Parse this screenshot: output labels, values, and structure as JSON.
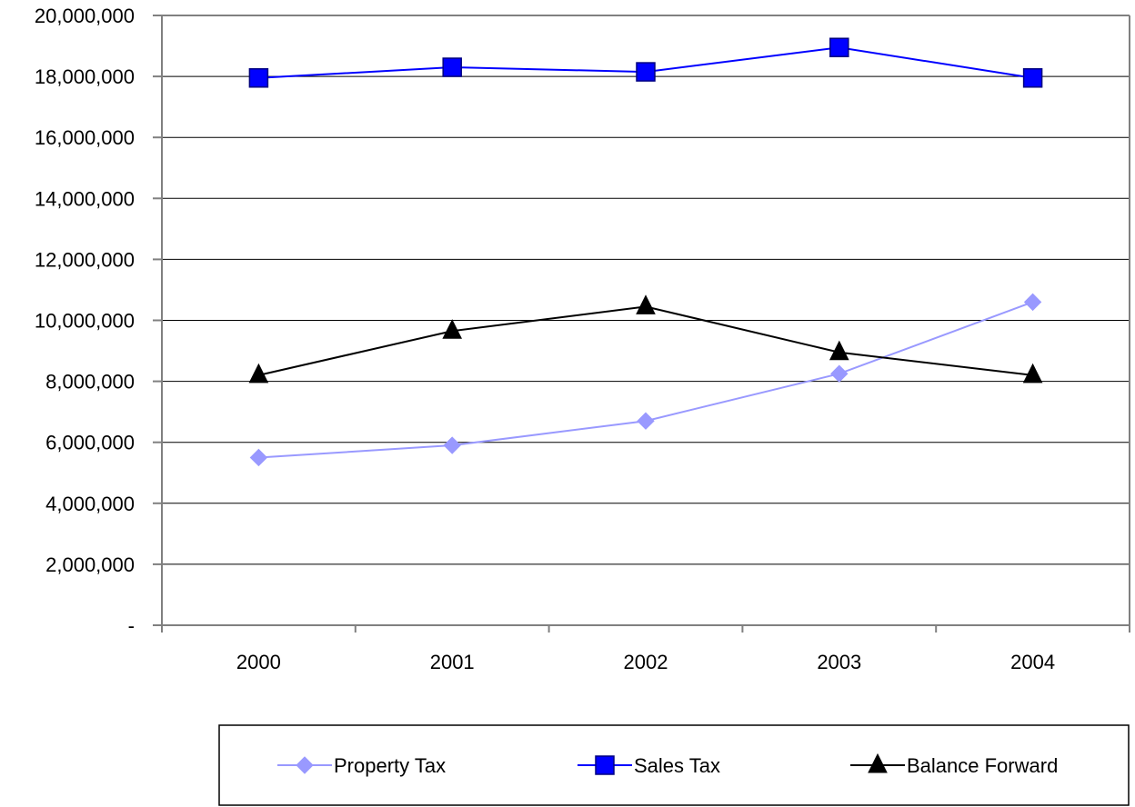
{
  "chart_data": {
    "type": "line",
    "title": "",
    "xlabel": "",
    "ylabel": "",
    "categories": [
      "2000",
      "2001",
      "2002",
      "2003",
      "2004"
    ],
    "ylim": [
      0,
      20000000
    ],
    "y_ticks": [
      {
        "value": 0,
        "label": "-"
      },
      {
        "value": 2000000,
        "label": "2,000,000"
      },
      {
        "value": 4000000,
        "label": "4,000,000"
      },
      {
        "value": 6000000,
        "label": "6,000,000"
      },
      {
        "value": 8000000,
        "label": "8,000,000"
      },
      {
        "value": 10000000,
        "label": "10,000,000"
      },
      {
        "value": 12000000,
        "label": "12,000,000"
      },
      {
        "value": 14000000,
        "label": "14,000,000"
      },
      {
        "value": 16000000,
        "label": "16,000,000"
      },
      {
        "value": 18000000,
        "label": "18,000,000"
      },
      {
        "value": 20000000,
        "label": "20,000,000"
      }
    ],
    "grid": true,
    "legend_position": "bottom",
    "series": [
      {
        "name": "Property Tax",
        "color": "#9999FF",
        "marker": "diamond",
        "values": [
          5500000,
          5900000,
          6700000,
          8250000,
          10600000
        ]
      },
      {
        "name": "Sales Tax",
        "color": "#0000FF",
        "marker": "square",
        "values": [
          17950000,
          18300000,
          18150000,
          18950000,
          17950000
        ]
      },
      {
        "name": "Balance Forward",
        "color": "#000000",
        "marker": "triangle",
        "values": [
          8200000,
          9650000,
          10450000,
          8950000,
          8200000
        ]
      }
    ]
  }
}
